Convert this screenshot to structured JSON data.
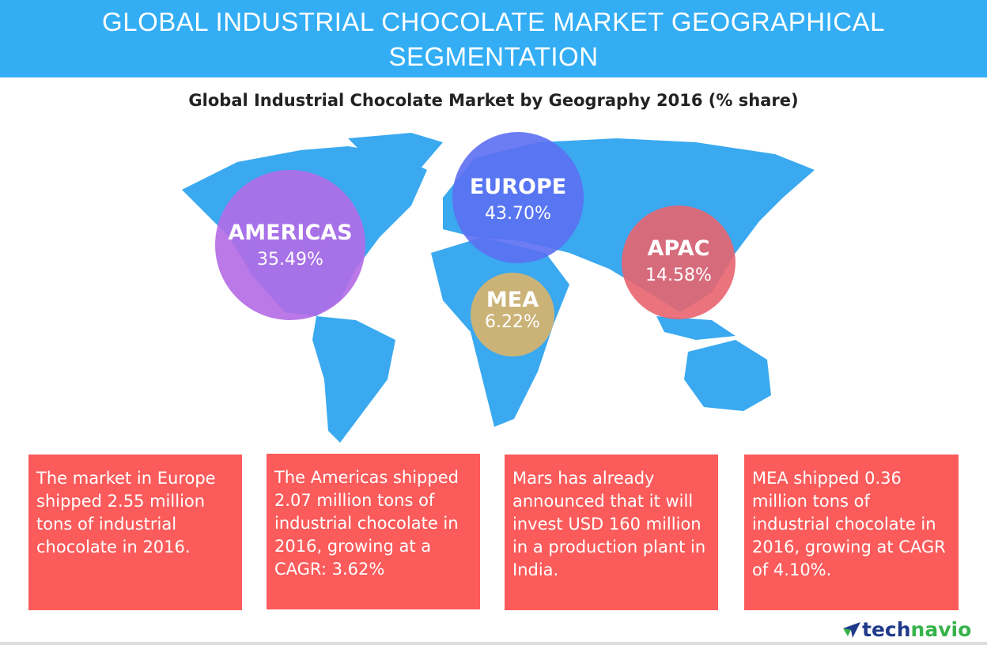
{
  "header": {
    "title_line1": "GLOBAL INDUSTRIAL CHOCOLATE MARKET GEOGRAPHICAL",
    "title_line2": "SEGMENTATION"
  },
  "subtitle": "Global Industrial Chocolate Market by Geography 2016 (% share)",
  "regions": [
    {
      "name": "AMERICAS",
      "share": "35.49%",
      "color": "#b46ae6"
    },
    {
      "name": "EUROPE",
      "share": "43.70%",
      "color": "#5c6ff2"
    },
    {
      "name": "APAC",
      "share": "14.58%",
      "color": "#e8646f"
    },
    {
      "name": "MEA",
      "share": "6.22%",
      "color": "#dcb46a"
    }
  ],
  "facts": [
    "The market in Europe shipped 2.55 million tons of industrial chocolate in 2016.",
    "The Americas shipped 2.07 million tons of industrial chocolate in 2016, growing at a CAGR: 3.62%",
    "Mars has already announced that it will invest USD 160 million in a production plant in India.",
    "MEA shipped 0.36 million tons of industrial chocolate in 2016, growing at CAGR of 4.10%."
  ],
  "logo": {
    "part1": "tech",
    "part2": "navio"
  },
  "colors": {
    "header": "#33aef5",
    "map": "#3aa9f0",
    "fact_box": "#fb5b5b"
  }
}
